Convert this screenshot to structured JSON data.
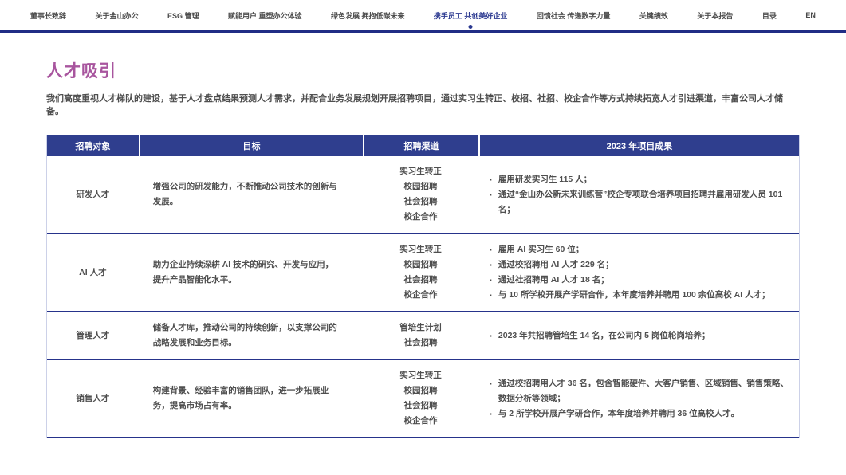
{
  "colors": {
    "nav_active": "#2b3990",
    "nav_text": "#4a4a4a",
    "nav_underline": "#202d85",
    "title_accent": "#a8559e",
    "table_header_bg": "#2f3e8e",
    "row_divider": "#26338b",
    "body_text": "#4f4f4f"
  },
  "nav": {
    "items": [
      {
        "label": "董事长致辞",
        "active": false
      },
      {
        "label": "关于金山办公",
        "active": false
      },
      {
        "label": "ESG 管理",
        "active": false
      },
      {
        "label": "赋能用户 重塑办公体验",
        "active": false
      },
      {
        "label": "绿色发展 拥抱低碳未来",
        "active": false
      },
      {
        "label": "携手员工 共创美好企业",
        "active": true
      },
      {
        "label": "回馈社会 传递数字力量",
        "active": false
      },
      {
        "label": "关键绩效",
        "active": false
      },
      {
        "label": "关于本报告",
        "active": false
      },
      {
        "label": "目录",
        "active": false
      },
      {
        "label": "EN",
        "active": false
      }
    ]
  },
  "page": {
    "title": "人才吸引",
    "intro": "我们高度重视人才梯队的建设，基于人才盘点结果预测人才需求，并配合业务发展规划开展招聘项目，通过实习生转正、校招、社招、校企合作等方式持续拓宽人才引进渠道，丰富公司人才储备。"
  },
  "table": {
    "headers": [
      "招聘对象",
      "目标",
      "招聘渠道",
      "2023 年项目成果"
    ],
    "rows": [
      {
        "target": "研发人才",
        "goal": "增强公司的研发能力，不断推动公司技术的创新与发展。",
        "channels": [
          "实习生转正",
          "校园招聘",
          "社会招聘",
          "校企合作"
        ],
        "results": [
          "雇用研发实习生 115 人；",
          "通过“金山办公新未来训练营”校企专项联合培养项目招聘并雇用研发人员 101 名；"
        ]
      },
      {
        "target": "AI 人才",
        "goal": "助力企业持续深耕 AI 技术的研究、开发与应用，提升产品智能化水平。",
        "channels": [
          "实习生转正",
          "校园招聘",
          "社会招聘",
          "校企合作"
        ],
        "results": [
          "雇用 AI 实习生 60 位；",
          "通过校招聘用 AI 人才 229 名；",
          "通过社招聘用 AI 人才 18 名；",
          "与 10 所学校开展产学研合作，本年度培养并聘用 100 余位高校 AI 人才；"
        ]
      },
      {
        "target": "管理人才",
        "goal": "储备人才库，推动公司的持续创新，以支撑公司的战略发展和业务目标。",
        "channels": [
          "管培生计划",
          "社会招聘"
        ],
        "results": [
          "2023 年共招聘管培生 14 名，在公司内 5 岗位轮岗培养；"
        ]
      },
      {
        "target": "销售人才",
        "goal": "构建背景、经验丰富的销售团队，进一步拓展业务，提高市场占有率。",
        "channels": [
          "实习生转正",
          "校园招聘",
          "社会招聘",
          "校企合作"
        ],
        "results": [
          "通过校招聘用人才 36 名，包含智能硬件、大客户销售、区域销售、销售策略、数据分析等领域；",
          "与 2 所学校开展产学研合作，本年度培养并聘用 36 位高校人才。"
        ]
      }
    ]
  }
}
